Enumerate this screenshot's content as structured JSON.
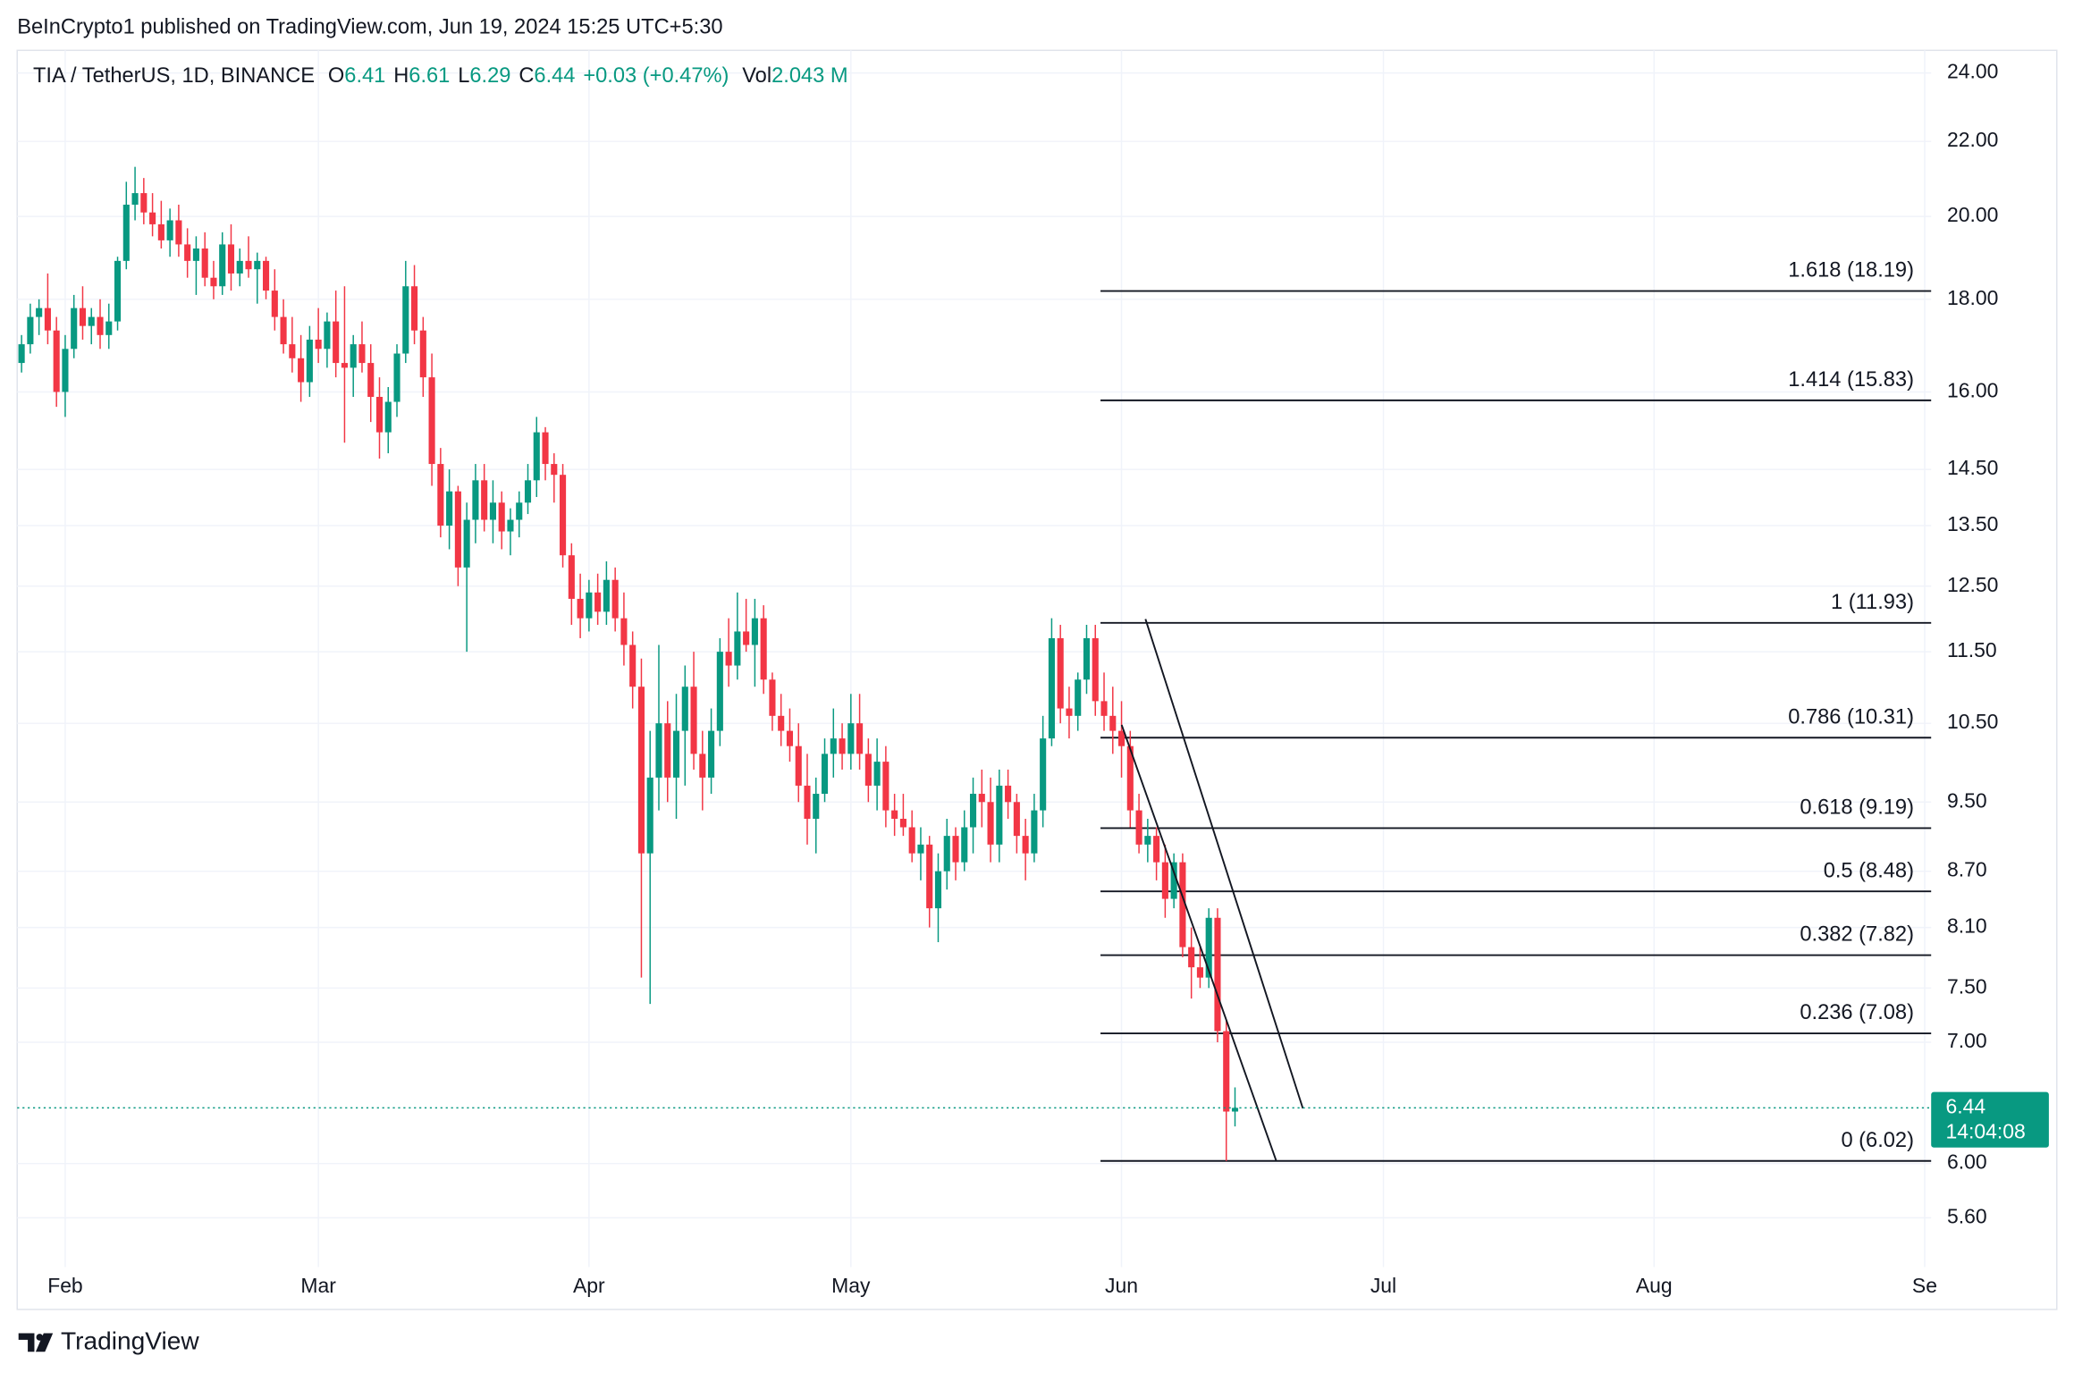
{
  "header": {
    "publisher": "BeInCrypto1 published on TradingView.com, Jun 19, 2024 15:25 UTC+5:30"
  },
  "footer": {
    "brand": "TradingView"
  },
  "chart_data": {
    "type": "candlestick",
    "legend": {
      "symbol": "TIA / TetherUS, 1D, BINANCE",
      "fields": [
        {
          "label": "O",
          "value": "6.41"
        },
        {
          "label": "H",
          "value": "6.61"
        },
        {
          "label": "L",
          "value": "6.29"
        },
        {
          "label": "C",
          "value": "6.44"
        }
      ],
      "change": "+0.03 (+0.47%)",
      "volume_label": "Vol",
      "volume": "2.043 M"
    },
    "log_scale": true,
    "grid": true,
    "up_color": "#089981",
    "down_color": "#f23645",
    "ylim": [
      5.26,
      24.7
    ],
    "yticks": [
      {
        "value": 5.6,
        "label": "5.60"
      },
      {
        "value": 6,
        "label": "6.00"
      },
      {
        "value": 7,
        "label": "7.00"
      },
      {
        "value": 7.5,
        "label": "7.50"
      },
      {
        "value": 8.1,
        "label": "8.10"
      },
      {
        "value": 8.7,
        "label": "8.70"
      },
      {
        "value": 9.5,
        "label": "9.50"
      },
      {
        "value": 10.5,
        "label": "10.50"
      },
      {
        "value": 11.5,
        "label": "11.50"
      },
      {
        "value": 12.5,
        "label": "12.50"
      },
      {
        "value": 13.5,
        "label": "13.50"
      },
      {
        "value": 14.5,
        "label": "14.50"
      },
      {
        "value": 16,
        "label": "16.00"
      },
      {
        "value": 18,
        "label": "18.00"
      },
      {
        "value": 20,
        "label": "20.00"
      },
      {
        "value": 22,
        "label": "22.00"
      },
      {
        "value": 24,
        "label": "24.00"
      }
    ],
    "categories": [
      null,
      null,
      null,
      null,
      null,
      "Feb",
      null,
      null,
      null,
      null,
      null,
      null,
      null,
      null,
      null,
      null,
      null,
      null,
      null,
      null,
      null,
      null,
      null,
      null,
      null,
      null,
      null,
      null,
      null,
      null,
      null,
      null,
      null,
      null,
      "Mar",
      null,
      null,
      null,
      null,
      null,
      null,
      null,
      null,
      null,
      null,
      null,
      null,
      null,
      null,
      null,
      null,
      null,
      null,
      null,
      null,
      null,
      null,
      null,
      null,
      null,
      null,
      null,
      null,
      null,
      null,
      "Apr",
      null,
      null,
      null,
      null,
      null,
      null,
      null,
      null,
      null,
      null,
      null,
      null,
      null,
      null,
      null,
      null,
      null,
      null,
      null,
      null,
      null,
      null,
      null,
      null,
      null,
      null,
      null,
      null,
      null,
      "May",
      null,
      null,
      null,
      null,
      null,
      null,
      null,
      null,
      null,
      null,
      null,
      null,
      null,
      null,
      null,
      null,
      null,
      null,
      null,
      null,
      null,
      null,
      null,
      null,
      null,
      null,
      null,
      null,
      null,
      null,
      "Jun",
      null,
      null,
      null,
      null,
      null,
      null,
      null,
      null,
      null,
      null,
      null,
      null,
      null,
      null,
      null,
      null,
      null,
      null,
      null,
      null,
      null,
      null,
      null,
      null,
      null,
      null,
      null,
      null,
      null,
      "Jul",
      null,
      null,
      null,
      null,
      null,
      null,
      null,
      null,
      null,
      null,
      null,
      null,
      null,
      null,
      null,
      null,
      null,
      null,
      null,
      null,
      null,
      null,
      null,
      null,
      null,
      null,
      null,
      null,
      null,
      null,
      "Aug",
      null,
      null,
      null,
      null,
      null,
      null,
      null,
      null,
      null,
      null,
      null,
      null,
      null,
      null,
      null,
      null,
      null,
      null,
      null,
      null,
      null,
      null,
      null,
      null,
      null,
      null,
      null,
      null,
      null,
      null,
      "Se"
    ],
    "series": [
      {
        "name": "TIA / TetherUS",
        "ohlc": [
          [
            16.6,
            17.2,
            16.4,
            17.0
          ],
          [
            17.0,
            17.9,
            16.8,
            17.6
          ],
          [
            17.6,
            18.0,
            17.2,
            17.8
          ],
          [
            17.8,
            18.6,
            17.0,
            17.3
          ],
          [
            17.3,
            17.6,
            15.7,
            16.0
          ],
          [
            16.0,
            17.2,
            15.5,
            16.9
          ],
          [
            16.9,
            18.1,
            16.7,
            17.8
          ],
          [
            17.8,
            18.3,
            17.1,
            17.4
          ],
          [
            17.4,
            17.8,
            17.0,
            17.6
          ],
          [
            17.6,
            18.0,
            16.9,
            17.2
          ],
          [
            17.2,
            17.9,
            16.9,
            17.5
          ],
          [
            17.5,
            19.0,
            17.3,
            18.9
          ],
          [
            18.9,
            20.9,
            18.7,
            20.3
          ],
          [
            20.3,
            21.3,
            19.9,
            20.6
          ],
          [
            20.6,
            21.0,
            19.8,
            20.1
          ],
          [
            20.1,
            20.6,
            19.5,
            19.8
          ],
          [
            19.8,
            20.4,
            19.2,
            19.4
          ],
          [
            19.4,
            20.2,
            19.0,
            19.9
          ],
          [
            19.9,
            20.3,
            19.0,
            19.3
          ],
          [
            19.3,
            19.7,
            18.5,
            18.9
          ],
          [
            18.9,
            19.5,
            18.1,
            19.2
          ],
          [
            19.2,
            19.6,
            18.3,
            18.5
          ],
          [
            18.5,
            18.9,
            18.0,
            18.3
          ],
          [
            18.3,
            19.6,
            18.1,
            19.3
          ],
          [
            19.3,
            19.8,
            18.2,
            18.6
          ],
          [
            18.6,
            19.2,
            18.3,
            18.9
          ],
          [
            18.9,
            19.5,
            18.5,
            18.7
          ],
          [
            18.7,
            19.1,
            17.9,
            18.9
          ],
          [
            18.9,
            19.0,
            18.0,
            18.2
          ],
          [
            18.2,
            18.7,
            17.3,
            17.6
          ],
          [
            17.6,
            18.0,
            16.8,
            17.0
          ],
          [
            17.0,
            17.6,
            16.4,
            16.7
          ],
          [
            16.7,
            17.2,
            15.8,
            16.2
          ],
          [
            16.2,
            17.4,
            15.9,
            17.1
          ],
          [
            17.1,
            17.8,
            16.6,
            16.9
          ],
          [
            16.9,
            17.7,
            16.5,
            17.5
          ],
          [
            17.5,
            18.2,
            16.3,
            16.6
          ],
          [
            16.6,
            18.3,
            15.0,
            16.5
          ],
          [
            16.5,
            17.2,
            15.9,
            17.0
          ],
          [
            17.0,
            17.5,
            16.4,
            16.6
          ],
          [
            16.6,
            17.0,
            15.4,
            15.9
          ],
          [
            15.9,
            16.3,
            14.7,
            15.2
          ],
          [
            15.2,
            16.1,
            14.8,
            15.8
          ],
          [
            15.8,
            17.0,
            15.5,
            16.8
          ],
          [
            16.8,
            18.9,
            16.6,
            18.3
          ],
          [
            18.3,
            18.8,
            17.0,
            17.3
          ],
          [
            17.3,
            17.6,
            15.9,
            16.3
          ],
          [
            16.3,
            16.8,
            14.2,
            14.6
          ],
          [
            14.6,
            14.9,
            13.3,
            13.5
          ],
          [
            13.5,
            14.5,
            13.1,
            14.1
          ],
          [
            14.1,
            14.2,
            12.5,
            12.8
          ],
          [
            12.8,
            13.9,
            11.5,
            13.6
          ],
          [
            13.6,
            14.6,
            13.2,
            14.3
          ],
          [
            14.3,
            14.6,
            13.4,
            13.6
          ],
          [
            13.6,
            14.3,
            13.2,
            13.9
          ],
          [
            13.9,
            14.1,
            13.1,
            13.4
          ],
          [
            13.4,
            13.8,
            13.0,
            13.6
          ],
          [
            13.6,
            14.1,
            13.3,
            13.9
          ],
          [
            13.9,
            14.6,
            13.7,
            14.3
          ],
          [
            14.3,
            15.5,
            14.0,
            15.2
          ],
          [
            15.2,
            15.3,
            14.3,
            14.6
          ],
          [
            14.6,
            14.8,
            13.9,
            14.4
          ],
          [
            14.4,
            14.6,
            12.8,
            13.0
          ],
          [
            13.0,
            13.2,
            11.9,
            12.3
          ],
          [
            12.3,
            12.7,
            11.7,
            12.0
          ],
          [
            12.0,
            12.6,
            11.8,
            12.4
          ],
          [
            12.4,
            12.7,
            11.9,
            12.1
          ],
          [
            12.1,
            12.9,
            11.9,
            12.6
          ],
          [
            12.6,
            12.8,
            11.8,
            12.0
          ],
          [
            12.0,
            12.4,
            11.3,
            11.6
          ],
          [
            11.6,
            11.8,
            10.7,
            11.0
          ],
          [
            11.0,
            11.4,
            7.6,
            8.9
          ],
          [
            8.9,
            10.4,
            7.35,
            9.8
          ],
          [
            9.8,
            11.6,
            9.4,
            10.5
          ],
          [
            10.5,
            10.8,
            9.5,
            9.8
          ],
          [
            9.8,
            10.9,
            9.3,
            10.4
          ],
          [
            10.4,
            11.3,
            9.7,
            11.0
          ],
          [
            11.0,
            11.5,
            9.9,
            10.1
          ],
          [
            10.1,
            10.4,
            9.4,
            9.8
          ],
          [
            9.8,
            10.7,
            9.6,
            10.4
          ],
          [
            10.4,
            11.7,
            10.2,
            11.5
          ],
          [
            11.5,
            12.0,
            11.0,
            11.3
          ],
          [
            11.3,
            12.4,
            11.1,
            11.8
          ],
          [
            11.8,
            12.3,
            11.5,
            11.6
          ],
          [
            11.6,
            12.3,
            11.0,
            12.0
          ],
          [
            12.0,
            12.2,
            10.9,
            11.1
          ],
          [
            11.1,
            11.2,
            10.4,
            10.6
          ],
          [
            10.6,
            10.9,
            10.2,
            10.4
          ],
          [
            10.4,
            10.7,
            10.0,
            10.2
          ],
          [
            10.2,
            10.5,
            9.5,
            9.7
          ],
          [
            9.7,
            10.1,
            9.0,
            9.3
          ],
          [
            9.3,
            9.8,
            8.9,
            9.6
          ],
          [
            9.6,
            10.3,
            9.5,
            10.1
          ],
          [
            10.1,
            10.7,
            9.8,
            10.3
          ],
          [
            10.3,
            10.5,
            9.9,
            10.1
          ],
          [
            10.1,
            10.9,
            9.9,
            10.5
          ],
          [
            10.5,
            10.9,
            9.9,
            10.1
          ],
          [
            10.1,
            10.3,
            9.5,
            9.7
          ],
          [
            9.7,
            10.3,
            9.4,
            10.0
          ],
          [
            10.0,
            10.2,
            9.2,
            9.4
          ],
          [
            9.4,
            9.6,
            9.1,
            9.3
          ],
          [
            9.3,
            9.6,
            9.1,
            9.2
          ],
          [
            9.2,
            9.4,
            8.8,
            8.9
          ],
          [
            8.9,
            9.2,
            8.6,
            9.0
          ],
          [
            9.0,
            9.1,
            8.1,
            8.3
          ],
          [
            8.3,
            8.9,
            7.95,
            8.7
          ],
          [
            8.7,
            9.3,
            8.5,
            9.1
          ],
          [
            9.1,
            9.2,
            8.6,
            8.8
          ],
          [
            8.8,
            9.4,
            8.7,
            9.2
          ],
          [
            9.2,
            9.8,
            8.9,
            9.6
          ],
          [
            9.6,
            9.9,
            9.2,
            9.5
          ],
          [
            9.5,
            9.8,
            8.8,
            9.0
          ],
          [
            9.0,
            9.9,
            8.8,
            9.7
          ],
          [
            9.7,
            9.9,
            9.3,
            9.5
          ],
          [
            9.5,
            9.6,
            8.9,
            9.1
          ],
          [
            9.1,
            9.3,
            8.6,
            8.9
          ],
          [
            8.9,
            9.6,
            8.8,
            9.4
          ],
          [
            9.4,
            10.6,
            9.2,
            10.3
          ],
          [
            10.3,
            12.0,
            10.2,
            11.7
          ],
          [
            11.7,
            11.9,
            10.5,
            10.7
          ],
          [
            10.7,
            11.0,
            10.3,
            10.6
          ],
          [
            10.6,
            11.2,
            10.4,
            11.1
          ],
          [
            11.1,
            11.9,
            10.9,
            11.7
          ],
          [
            11.7,
            11.9,
            10.6,
            10.8
          ],
          [
            10.8,
            11.2,
            10.4,
            10.6
          ],
          [
            10.6,
            11.0,
            10.1,
            10.4
          ],
          [
            10.4,
            10.8,
            9.8,
            10.2
          ],
          [
            10.2,
            10.4,
            9.2,
            9.4
          ],
          [
            9.4,
            9.6,
            8.9,
            9.0
          ],
          [
            9.0,
            9.3,
            8.8,
            9.1
          ],
          [
            9.1,
            9.2,
            8.6,
            8.8
          ],
          [
            8.8,
            9.0,
            8.2,
            8.4
          ],
          [
            8.4,
            8.9,
            8.3,
            8.8
          ],
          [
            8.8,
            8.9,
            7.8,
            7.9
          ],
          [
            7.9,
            8.1,
            7.4,
            7.7
          ],
          [
            7.7,
            7.9,
            7.5,
            7.6
          ],
          [
            7.6,
            8.3,
            7.5,
            8.2
          ],
          [
            8.2,
            8.3,
            7.0,
            7.1
          ],
          [
            7.1,
            7.2,
            6.02,
            6.41
          ],
          [
            6.41,
            6.61,
            6.29,
            6.44
          ],
          null,
          null,
          null,
          null,
          null,
          null,
          null,
          null,
          null,
          null,
          null,
          null,
          null,
          null,
          null,
          null,
          null,
          null,
          null,
          null,
          null,
          null,
          null,
          null,
          null,
          null,
          null,
          null,
          null,
          null,
          null,
          null,
          null,
          null,
          null,
          null,
          null,
          null,
          null,
          null,
          null,
          null,
          null,
          null,
          null,
          null,
          null,
          null,
          null,
          null,
          null,
          null,
          null,
          null,
          null,
          null,
          null,
          null,
          null,
          null,
          null,
          null,
          null,
          null,
          null,
          null,
          null,
          null,
          null,
          null,
          null,
          null,
          null,
          null
        ]
      }
    ],
    "fib_levels": [
      {
        "label": "1.618 (18.19)",
        "value": 18.19
      },
      {
        "label": "1.414 (15.83)",
        "value": 15.83
      },
      {
        "label": "1 (11.93)",
        "value": 11.93
      },
      {
        "label": "0.786 (10.31)",
        "value": 10.31
      },
      {
        "label": "0.618 (9.19)",
        "value": 9.19
      },
      {
        "label": "0.5 (8.48)",
        "value": 8.48
      },
      {
        "label": "0.382 (7.82)",
        "value": 7.82
      },
      {
        "label": "0.236 (7.08)",
        "value": 7.08
      },
      {
        "label": "0 (6.02)",
        "value": 6.02
      }
    ],
    "last_price": 6.44,
    "countdown": "14:04:08"
  }
}
